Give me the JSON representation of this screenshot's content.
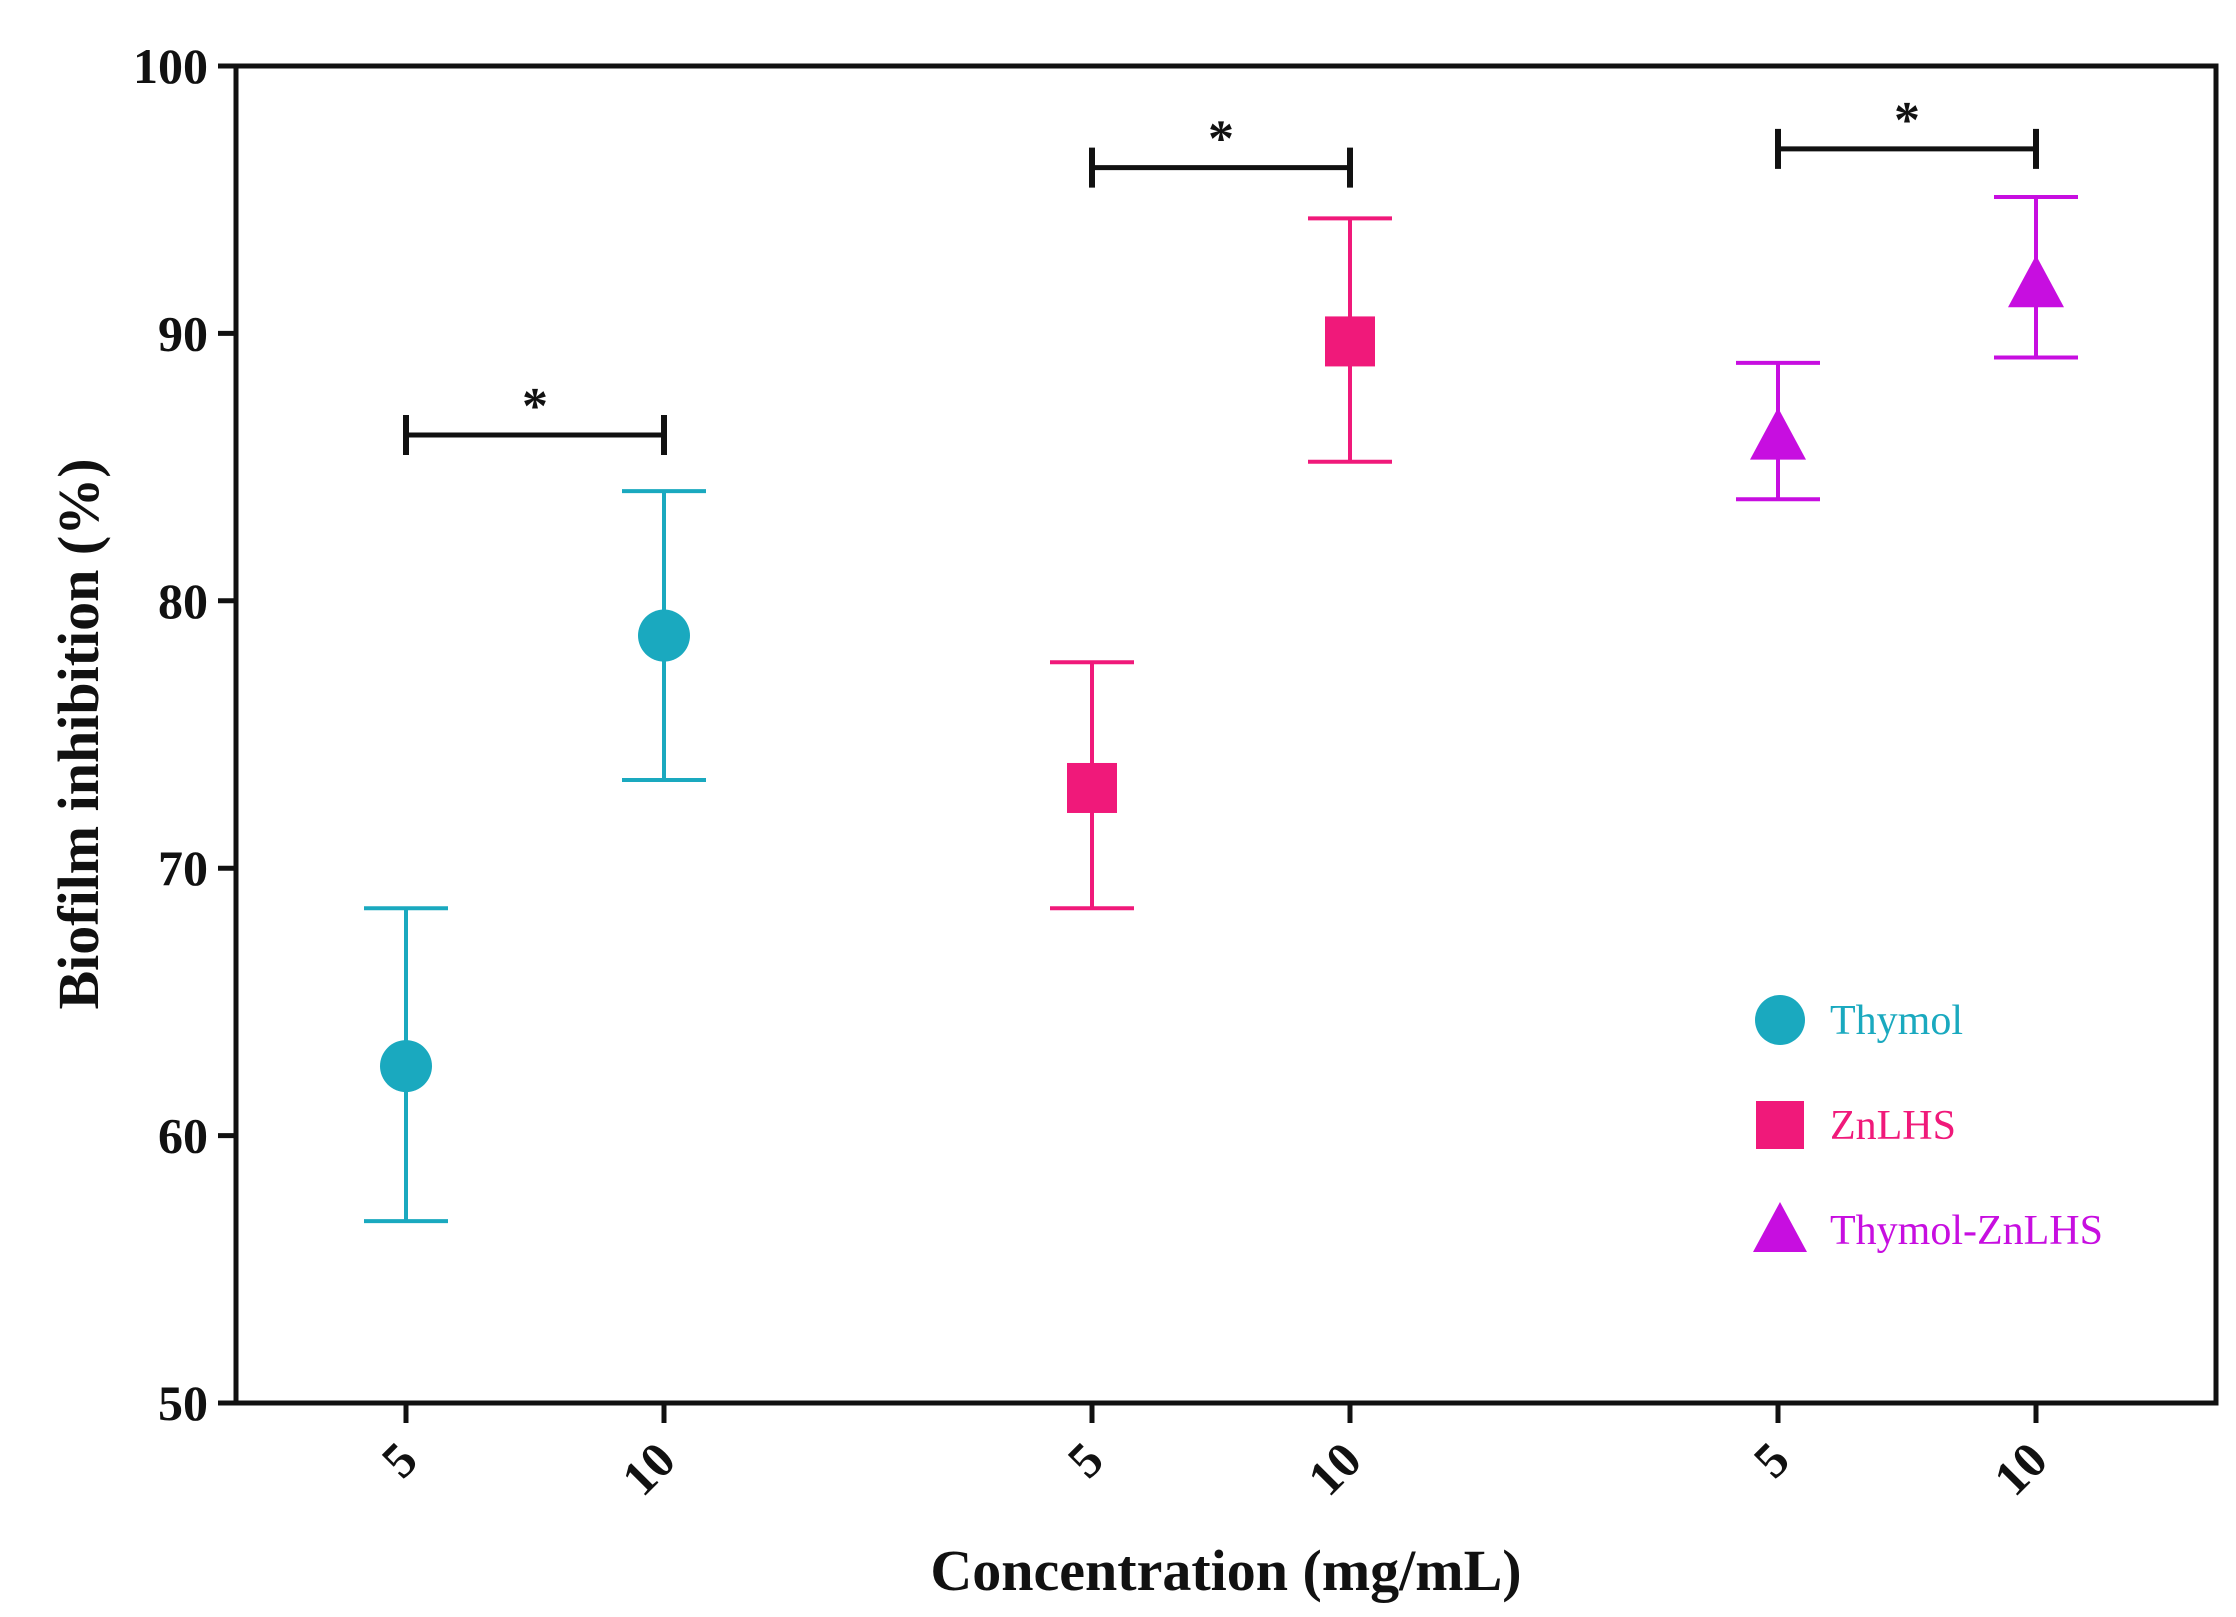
{
  "chart_data": {
    "type": "scatter",
    "xlabel": "Concentration (mg/mL)",
    "ylabel": "Biofilm inhibition (%)",
    "ylim": [
      50,
      100
    ],
    "yticks": [
      50,
      60,
      70,
      80,
      90,
      100
    ],
    "grid": false,
    "legend_position": "right",
    "series": [
      {
        "name": "Thymol",
        "color": "#1aa9bf",
        "marker": "circle",
        "categories": [
          "5",
          "10"
        ],
        "values": [
          62.6,
          78.7
        ],
        "error_low": [
          56.8,
          73.3
        ],
        "error_high": [
          68.5,
          84.1
        ]
      },
      {
        "name": "ZnLHS",
        "color": "#f0197a",
        "marker": "square",
        "categories": [
          "5",
          "10"
        ],
        "values": [
          73.0,
          89.7
        ],
        "error_low": [
          68.5,
          85.2
        ],
        "error_high": [
          77.7,
          94.3
        ]
      },
      {
        "name": "Thymol-ZnLHS",
        "color": "#c70ee0",
        "marker": "triangle",
        "categories": [
          "5",
          "10"
        ],
        "values": [
          86.1,
          91.8
        ],
        "error_low": [
          83.8,
          89.1
        ],
        "error_high": [
          88.9,
          95.1
        ]
      }
    ],
    "annotations": [
      {
        "text": "*",
        "group": "Thymol",
        "y": 86.2
      },
      {
        "text": "*",
        "group": "ZnLHS",
        "y": 96.2
      },
      {
        "text": "*",
        "group": "Thymol-ZnLHS",
        "y": 96.9
      }
    ]
  }
}
